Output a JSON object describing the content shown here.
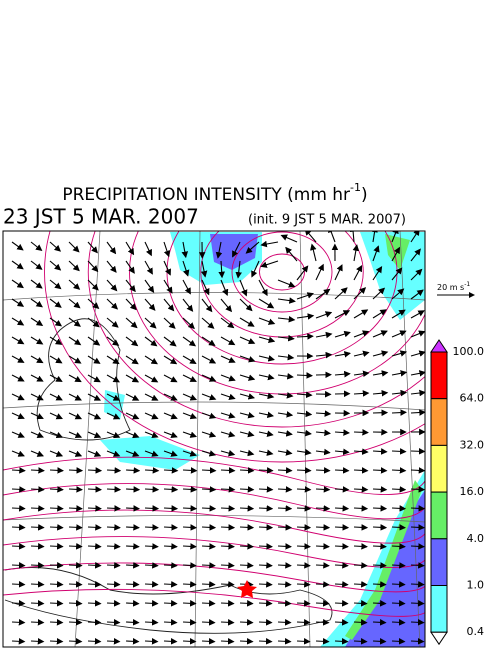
{
  "header": {
    "title": {
      "main": "PRECIPITATION INTENSITY (mm hr",
      "exponent": "-1",
      "end": ")"
    },
    "valid_time": "23 JST 5 MAR. 2007",
    "init_time": "(init. 9 JST 5 MAR. 2007)"
  },
  "reference_vector": {
    "label": "20 m s",
    "exponent": "-1"
  },
  "colorbar": {
    "labels": [
      "100.0",
      "64.0",
      "32.0",
      "16.0",
      "4.0",
      "1.0",
      "0.4"
    ],
    "colors": [
      "#cc33ff",
      "#ff0000",
      "#ff9933",
      "#ffff66",
      "#66ee66",
      "#6666ff",
      "#66ffff",
      "#ffffff"
    ]
  }
}
